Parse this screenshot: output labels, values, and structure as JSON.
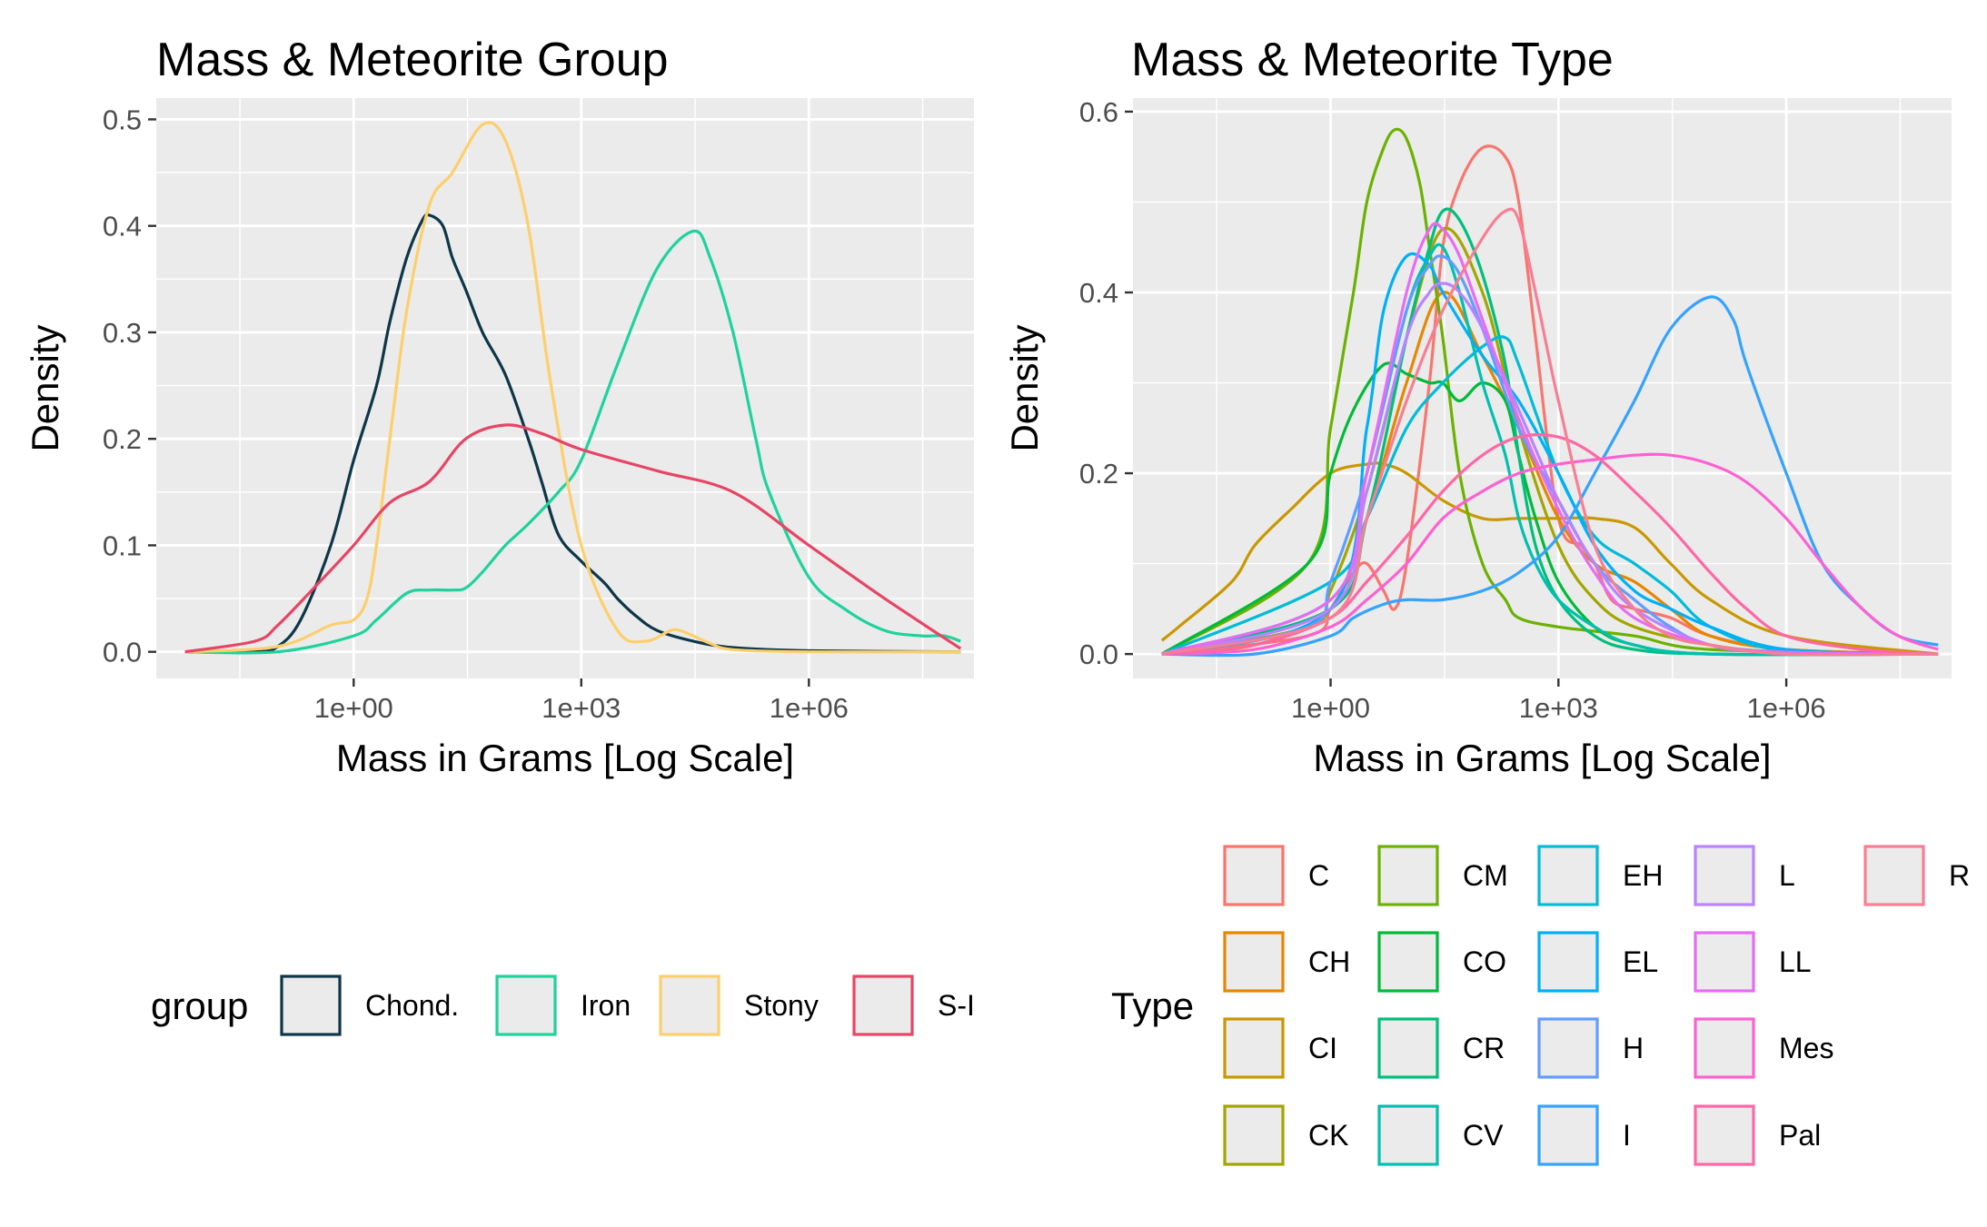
{
  "chart_data": [
    {
      "type": "line",
      "title": "Mass & Meteorite Group",
      "xlabel": "Mass in Grams [Log Scale]",
      "ylabel": "Density",
      "x_scale": "log10",
      "xlim": [
        0.0025,
        150000000
      ],
      "ylim": [
        -0.025,
        0.52
      ],
      "x_ticks": [
        1,
        1000,
        1000000
      ],
      "x_tick_labels": [
        "1e+00",
        "1e+03",
        "1e+06"
      ],
      "y_ticks": [
        0,
        0.1,
        0.2,
        0.3,
        0.4,
        0.5
      ],
      "y_tick_labels": [
        "0.0",
        "0.1",
        "0.2",
        "0.3",
        "0.4",
        "0.5"
      ],
      "grid": true,
      "legend": {
        "title": "group",
        "position": "bottom"
      },
      "series": [
        {
          "name": "Chond.",
          "color": "#0D3648",
          "x": [
            0.006,
            0.05,
            0.1,
            0.2,
            0.5,
            1,
            2,
            3,
            5,
            8,
            10,
            15,
            20,
            30,
            50,
            100,
            200,
            300,
            500,
            1000,
            2000,
            3000,
            5000,
            10000,
            30000,
            100000,
            1000000,
            100000000
          ],
          "y": [
            0,
            0,
            0.005,
            0.03,
            0.1,
            0.18,
            0.25,
            0.31,
            0.37,
            0.405,
            0.41,
            0.4,
            0.37,
            0.34,
            0.3,
            0.26,
            0.2,
            0.16,
            0.11,
            0.085,
            0.065,
            0.05,
            0.035,
            0.02,
            0.01,
            0.004,
            0.001,
            0
          ]
        },
        {
          "name": "Iron",
          "color": "#1ED39B",
          "x": [
            0.006,
            0.1,
            1,
            2,
            5,
            10,
            20,
            30,
            50,
            100,
            200,
            500,
            1000,
            3000,
            10000,
            30000,
            50000,
            100000,
            200000,
            300000,
            1000000,
            3000000,
            10000000,
            30000000,
            60000000,
            100000000
          ],
          "y": [
            0,
            0,
            0.015,
            0.03,
            0.055,
            0.058,
            0.058,
            0.06,
            0.075,
            0.1,
            0.12,
            0.15,
            0.18,
            0.27,
            0.36,
            0.395,
            0.37,
            0.3,
            0.2,
            0.15,
            0.07,
            0.04,
            0.02,
            0.015,
            0.015,
            0.01
          ]
        },
        {
          "name": "Stony",
          "color": "#FDCF6C",
          "x": [
            0.006,
            0.1,
            0.5,
            1,
            1.5,
            2,
            3,
            5,
            10,
            20,
            50,
            100,
            200,
            400,
            1000,
            3000,
            7000,
            15000,
            20000,
            30000,
            50000,
            100000,
            1000000,
            100000000
          ],
          "y": [
            0,
            0.005,
            0.025,
            0.03,
            0.05,
            0.1,
            0.2,
            0.32,
            0.42,
            0.45,
            0.495,
            0.48,
            0.4,
            0.25,
            0.1,
            0.02,
            0.01,
            0.02,
            0.02,
            0.015,
            0.008,
            0.002,
            0,
            0
          ]
        },
        {
          "name": "S-I",
          "color": "#E64565",
          "x": [
            0.006,
            0.05,
            0.1,
            0.3,
            1,
            3,
            10,
            30,
            100,
            300,
            1000,
            10000,
            100000,
            1000000,
            10000000,
            100000000
          ],
          "y": [
            0,
            0.01,
            0.025,
            0.06,
            0.1,
            0.14,
            0.16,
            0.2,
            0.213,
            0.205,
            0.19,
            0.17,
            0.15,
            0.1,
            0.05,
            0.003
          ]
        }
      ]
    },
    {
      "type": "line",
      "title": "Mass & Meteorite Type",
      "xlabel": "Mass in Grams [Log Scale]",
      "ylabel": "Density",
      "x_scale": "log10",
      "xlim": [
        0.0025,
        150000000
      ],
      "ylim": [
        -0.027,
        0.615
      ],
      "x_ticks": [
        1,
        1000,
        1000000
      ],
      "x_tick_labels": [
        "1e+00",
        "1e+03",
        "1e+06"
      ],
      "y_ticks": [
        0,
        0.2,
        0.4,
        0.6
      ],
      "y_tick_labels": [
        "0.0",
        "0.2",
        "0.4",
        "0.6"
      ],
      "grid": true,
      "legend": {
        "title": "Type",
        "position": "bottom"
      },
      "series": [
        {
          "name": "C",
          "color": "#F8766D",
          "x": [
            0.006,
            0.5,
            1,
            2,
            3,
            5,
            7,
            10,
            20,
            30,
            50,
            100,
            200,
            300,
            500,
            1000,
            2000,
            3000,
            5000,
            10000,
            30000,
            100000,
            1000000,
            100000000
          ],
          "y": [
            0,
            0.02,
            0.05,
            0.09,
            0.1,
            0.07,
            0.05,
            0.1,
            0.3,
            0.45,
            0.52,
            0.56,
            0.55,
            0.5,
            0.35,
            0.15,
            0.12,
            0.1,
            0.06,
            0.05,
            0.04,
            0.02,
            0.005,
            0
          ]
        },
        {
          "name": "CH",
          "color": "#E58700",
          "x": [
            0.006,
            0.1,
            1,
            3,
            10,
            30,
            100,
            300,
            1000,
            3000,
            10000,
            30000,
            100000,
            1000000,
            100000000
          ],
          "y": [
            0,
            0.01,
            0.05,
            0.15,
            0.3,
            0.4,
            0.33,
            0.25,
            0.15,
            0.1,
            0.08,
            0.05,
            0.02,
            0.005,
            0
          ]
        },
        {
          "name": "CI",
          "color": "#C99800",
          "x": [
            0.006,
            0.01,
            0.05,
            0.1,
            0.3,
            1,
            3,
            5,
            10,
            30,
            100,
            300,
            1000,
            3000,
            10000,
            30000,
            100000,
            1000000,
            100000000
          ],
          "y": [
            0.015,
            0.03,
            0.08,
            0.12,
            0.16,
            0.2,
            0.21,
            0.21,
            0.2,
            0.17,
            0.15,
            0.15,
            0.15,
            0.15,
            0.14,
            0.1,
            0.06,
            0.02,
            0
          ]
        },
        {
          "name": "CK",
          "color": "#A3A500",
          "x": [
            0.006,
            0.5,
            1,
            3,
            10,
            30,
            100,
            300,
            1000,
            3000,
            10000,
            100000,
            1000000,
            100000000
          ],
          "y": [
            0,
            0.03,
            0.07,
            0.18,
            0.35,
            0.47,
            0.4,
            0.25,
            0.12,
            0.06,
            0.03,
            0.01,
            0.002,
            0
          ]
        },
        {
          "name": "CM",
          "color": "#6BB100",
          "x": [
            0.006,
            0.5,
            1,
            2,
            3,
            5,
            7,
            10,
            15,
            20,
            30,
            50,
            100,
            200,
            300,
            1000,
            10000,
            100000,
            100000000
          ],
          "y": [
            0,
            0.1,
            0.25,
            0.4,
            0.5,
            0.56,
            0.58,
            0.57,
            0.52,
            0.45,
            0.35,
            0.2,
            0.1,
            0.06,
            0.04,
            0.03,
            0.02,
            0.005,
            0
          ]
        },
        {
          "name": "CO",
          "color": "#00BA38",
          "x": [
            0.006,
            0.5,
            1,
            2,
            5,
            10,
            20,
            30,
            50,
            100,
            200,
            300,
            500,
            1000,
            3000,
            10000,
            100000,
            100000000
          ],
          "y": [
            0,
            0.1,
            0.2,
            0.27,
            0.32,
            0.31,
            0.3,
            0.3,
            0.28,
            0.3,
            0.28,
            0.22,
            0.15,
            0.08,
            0.03,
            0.01,
            0,
            0
          ]
        },
        {
          "name": "CR",
          "color": "#00BF7D",
          "x": [
            0.006,
            1,
            3,
            10,
            20,
            30,
            50,
            100,
            200,
            300,
            500,
            1000,
            3000,
            10000,
            100000,
            100000000
          ],
          "y": [
            0,
            0.05,
            0.15,
            0.35,
            0.45,
            0.49,
            0.48,
            0.42,
            0.32,
            0.22,
            0.12,
            0.06,
            0.02,
            0.005,
            0,
            0
          ]
        },
        {
          "name": "CV",
          "color": "#00C0AF",
          "x": [
            0.006,
            1,
            3,
            10,
            20,
            30,
            50,
            100,
            200,
            300,
            500,
            1000,
            3000,
            10000,
            100000,
            100000000
          ],
          "y": [
            0,
            0.06,
            0.2,
            0.38,
            0.44,
            0.45,
            0.4,
            0.3,
            0.22,
            0.15,
            0.1,
            0.06,
            0.03,
            0.01,
            0,
            0
          ]
        },
        {
          "name": "EH",
          "color": "#00BCD8",
          "x": [
            0.006,
            1,
            3,
            10,
            30,
            100,
            200,
            300,
            1000,
            3000,
            10000,
            30000,
            100000,
            1000000,
            100000000
          ],
          "y": [
            0,
            0.08,
            0.15,
            0.25,
            0.3,
            0.34,
            0.35,
            0.32,
            0.2,
            0.13,
            0.1,
            0.07,
            0.03,
            0.003,
            0
          ]
        },
        {
          "name": "EL",
          "color": "#00B0F6",
          "x": [
            0.006,
            1,
            3,
            5,
            10,
            20,
            30,
            100,
            300,
            1000,
            3000,
            10000,
            30000,
            100000,
            1000000,
            100000000
          ],
          "y": [
            0,
            0.05,
            0.25,
            0.38,
            0.44,
            0.43,
            0.4,
            0.33,
            0.28,
            0.2,
            0.12,
            0.07,
            0.05,
            0.03,
            0.005,
            0
          ]
        },
        {
          "name": "H",
          "color": "#619CFF",
          "x": [
            0.006,
            0.5,
            1,
            3,
            10,
            20,
            30,
            50,
            100,
            300,
            1000,
            3000,
            10000,
            30000,
            100000,
            1000000,
            100000000
          ],
          "y": [
            0,
            0.03,
            0.08,
            0.2,
            0.38,
            0.43,
            0.44,
            0.42,
            0.36,
            0.25,
            0.17,
            0.1,
            0.06,
            0.03,
            0.01,
            0.002,
            0
          ]
        },
        {
          "name": "I",
          "color": "#35A2FF",
          "x": [
            0.006,
            0.1,
            1,
            2,
            5,
            10,
            30,
            100,
            300,
            1000,
            3000,
            10000,
            30000,
            100000,
            200000,
            300000,
            1000000,
            3000000,
            10000000,
            30000000,
            100000000
          ],
          "y": [
            0,
            0,
            0.02,
            0.04,
            0.055,
            0.06,
            0.06,
            0.07,
            0.09,
            0.13,
            0.2,
            0.28,
            0.36,
            0.395,
            0.37,
            0.32,
            0.2,
            0.1,
            0.05,
            0.02,
            0.01
          ]
        },
        {
          "name": "L",
          "color": "#B983FF",
          "x": [
            0.006,
            1,
            3,
            10,
            20,
            30,
            50,
            100,
            300,
            1000,
            3000,
            10000,
            100000,
            1000000,
            100000000
          ],
          "y": [
            0,
            0.05,
            0.18,
            0.35,
            0.4,
            0.41,
            0.4,
            0.36,
            0.27,
            0.17,
            0.1,
            0.05,
            0.01,
            0.002,
            0
          ]
        },
        {
          "name": "LL",
          "color": "#E76BF3",
          "x": [
            0.006,
            1,
            3,
            10,
            20,
            30,
            50,
            100,
            300,
            1000,
            3000,
            10000,
            100000,
            1000000,
            100000000
          ],
          "y": [
            0,
            0.06,
            0.2,
            0.4,
            0.47,
            0.47,
            0.44,
            0.37,
            0.26,
            0.16,
            0.09,
            0.04,
            0.01,
            0.002,
            0
          ]
        },
        {
          "name": "Mes",
          "color": "#FD61D1",
          "x": [
            0.006,
            0.1,
            1,
            3,
            10,
            30,
            100,
            300,
            1000,
            3000,
            10000,
            30000,
            100000,
            300000,
            1000000,
            3000000,
            10000000,
            30000000,
            100000000
          ],
          "y": [
            0,
            0.005,
            0.03,
            0.06,
            0.1,
            0.15,
            0.18,
            0.2,
            0.21,
            0.215,
            0.22,
            0.22,
            0.21,
            0.19,
            0.15,
            0.1,
            0.05,
            0.02,
            0.005
          ]
        },
        {
          "name": "Pal",
          "color": "#FF67A4",
          "x": [
            0.006,
            0.1,
            1,
            3,
            10,
            30,
            100,
            300,
            1000,
            3000,
            10000,
            30000,
            100000,
            300000,
            1000000,
            10000000,
            100000000
          ],
          "y": [
            0,
            0.01,
            0.04,
            0.08,
            0.13,
            0.18,
            0.22,
            0.24,
            0.24,
            0.22,
            0.18,
            0.14,
            0.09,
            0.05,
            0.02,
            0.005,
            0
          ]
        },
        {
          "name": "R",
          "color": "#F87E94",
          "x": [
            0.006,
            1,
            3,
            10,
            30,
            100,
            200,
            300,
            500,
            1000,
            3000,
            10000,
            30000,
            100000,
            1000000,
            100000000
          ],
          "y": [
            0,
            0.04,
            0.15,
            0.28,
            0.38,
            0.46,
            0.49,
            0.48,
            0.4,
            0.28,
            0.12,
            0.05,
            0.02,
            0.01,
            0,
            0
          ]
        }
      ]
    }
  ]
}
